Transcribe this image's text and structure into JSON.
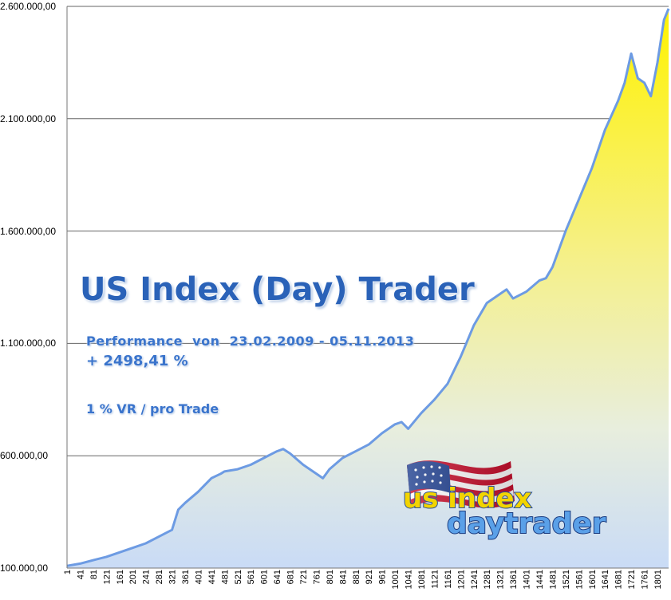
{
  "chart_data": {
    "type": "area",
    "title": "",
    "xlabel": "",
    "ylabel": "",
    "ylim": [
      100000,
      2600000
    ],
    "yticks": [
      "100.000,00",
      "600.000,00",
      "1.100.000,00",
      "1.600.000,00",
      "2.100.000,00",
      "2.600.000,00"
    ],
    "ytick_values": [
      100000,
      600000,
      1100000,
      1600000,
      2100000,
      2600000
    ],
    "xlim": [
      1,
      1835
    ],
    "xticks": [
      1,
      41,
      81,
      121,
      161,
      201,
      241,
      281,
      321,
      361,
      401,
      441,
      481,
      521,
      561,
      601,
      641,
      681,
      721,
      761,
      801,
      841,
      881,
      921,
      961,
      1001,
      1041,
      1081,
      1121,
      1161,
      1201,
      1241,
      1281,
      1321,
      1361,
      1401,
      1441,
      1481,
      1521,
      1561,
      1601,
      1641,
      1681,
      1721,
      1761,
      1801
    ],
    "grid": "horizontal",
    "series": [
      {
        "x": [
          1,
          41,
          81,
          121,
          161,
          201,
          241,
          281,
          321,
          340,
          361,
          401,
          441,
          470,
          481,
          521,
          561,
          601,
          641,
          660,
          681,
          721,
          761,
          781,
          801,
          841,
          881,
          921,
          961,
          1001,
          1021,
          1041,
          1081,
          1121,
          1161,
          1201,
          1241,
          1281,
          1321,
          1341,
          1361,
          1401,
          1441,
          1461,
          1481,
          1521,
          1561,
          1601,
          1641,
          1681,
          1701,
          1721,
          1741,
          1761,
          1781,
          1801,
          1821,
          1835
        ],
        "values": [
          110000,
          120000,
          135000,
          150000,
          170000,
          190000,
          210000,
          240000,
          270000,
          360000,
          390000,
          440000,
          500000,
          520000,
          530000,
          540000,
          560000,
          590000,
          620000,
          630000,
          610000,
          560000,
          520000,
          500000,
          540000,
          590000,
          620000,
          650000,
          700000,
          740000,
          750000,
          720000,
          790000,
          850000,
          920000,
          1040000,
          1180000,
          1280000,
          1320000,
          1340000,
          1300000,
          1330000,
          1380000,
          1390000,
          1440000,
          1600000,
          1740000,
          1880000,
          2050000,
          2180000,
          2260000,
          2390000,
          2280000,
          2260000,
          2200000,
          2350000,
          2540000,
          2590000
        ]
      }
    ]
  },
  "overlay": {
    "title": "US Index (Day) Trader",
    "line1": "Performance  von  23.02.2009 - 05.11.2013",
    "line2": "+ 2498,41 %",
    "line3": "1 % VR / pro Trade"
  },
  "logo": {
    "word1": "us index",
    "word2": "daytrader"
  },
  "colors": {
    "fill_top": "#ffee00",
    "fill_bottom": "#c8daf5",
    "line": "#6d9be3",
    "grid": "#666666"
  }
}
